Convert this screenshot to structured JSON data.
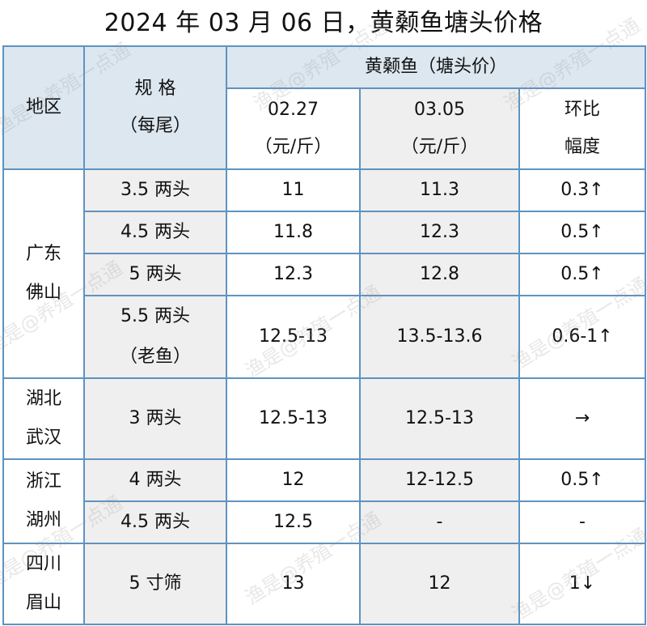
{
  "title": "2024 年 03 月 06 日，黄颡鱼塘头价格",
  "header": {
    "region": "地区",
    "spec_line1": "规 格",
    "spec_line2": "（每尾）",
    "group": "黄颡鱼（塘头价）",
    "date1_line1": "02.27",
    "date1_line2": "（元/斤）",
    "date2_line1": "03.05",
    "date2_line2": "（元/斤）",
    "change_line1": "环比",
    "change_line2": "幅度"
  },
  "regions": {
    "guangdong_l1": "广东",
    "guangdong_l2": "佛山",
    "hubei_l1": "湖北",
    "hubei_l2": "武汉",
    "zhejiang_l1": "浙江",
    "zhejiang_l2": "湖州",
    "sichuan_l1": "四川",
    "sichuan_l2": "眉山"
  },
  "rows": [
    {
      "spec": "3.5 两头",
      "p1": "11",
      "p2": "11.3",
      "change": "0.3↑"
    },
    {
      "spec": "4.5 两头",
      "p1": "11.8",
      "p2": "12.3",
      "change": "0.5↑"
    },
    {
      "spec": "5 两头",
      "p1": "12.3",
      "p2": "12.8",
      "change": "0.5↑"
    },
    {
      "spec_l1": "5.5 两头",
      "spec_l2": "（老鱼）",
      "p1": "12.5-13",
      "p2": "13.5-13.6",
      "change": "0.6-1↑"
    },
    {
      "spec": "3 两头",
      "p1": "12.5-13",
      "p2": "12.5-13",
      "change": "→"
    },
    {
      "spec": "4 两头",
      "p1": "12",
      "p2": "12-12.5",
      "change": "0.5↑"
    },
    {
      "spec": "4.5 两头",
      "p1": "12.5",
      "p2": "-",
      "change": "-"
    },
    {
      "spec": "5 寸筛",
      "p1": "13",
      "p2": "12",
      "change": "1↓"
    }
  ],
  "watermark": "渔是@养殖一点通"
}
